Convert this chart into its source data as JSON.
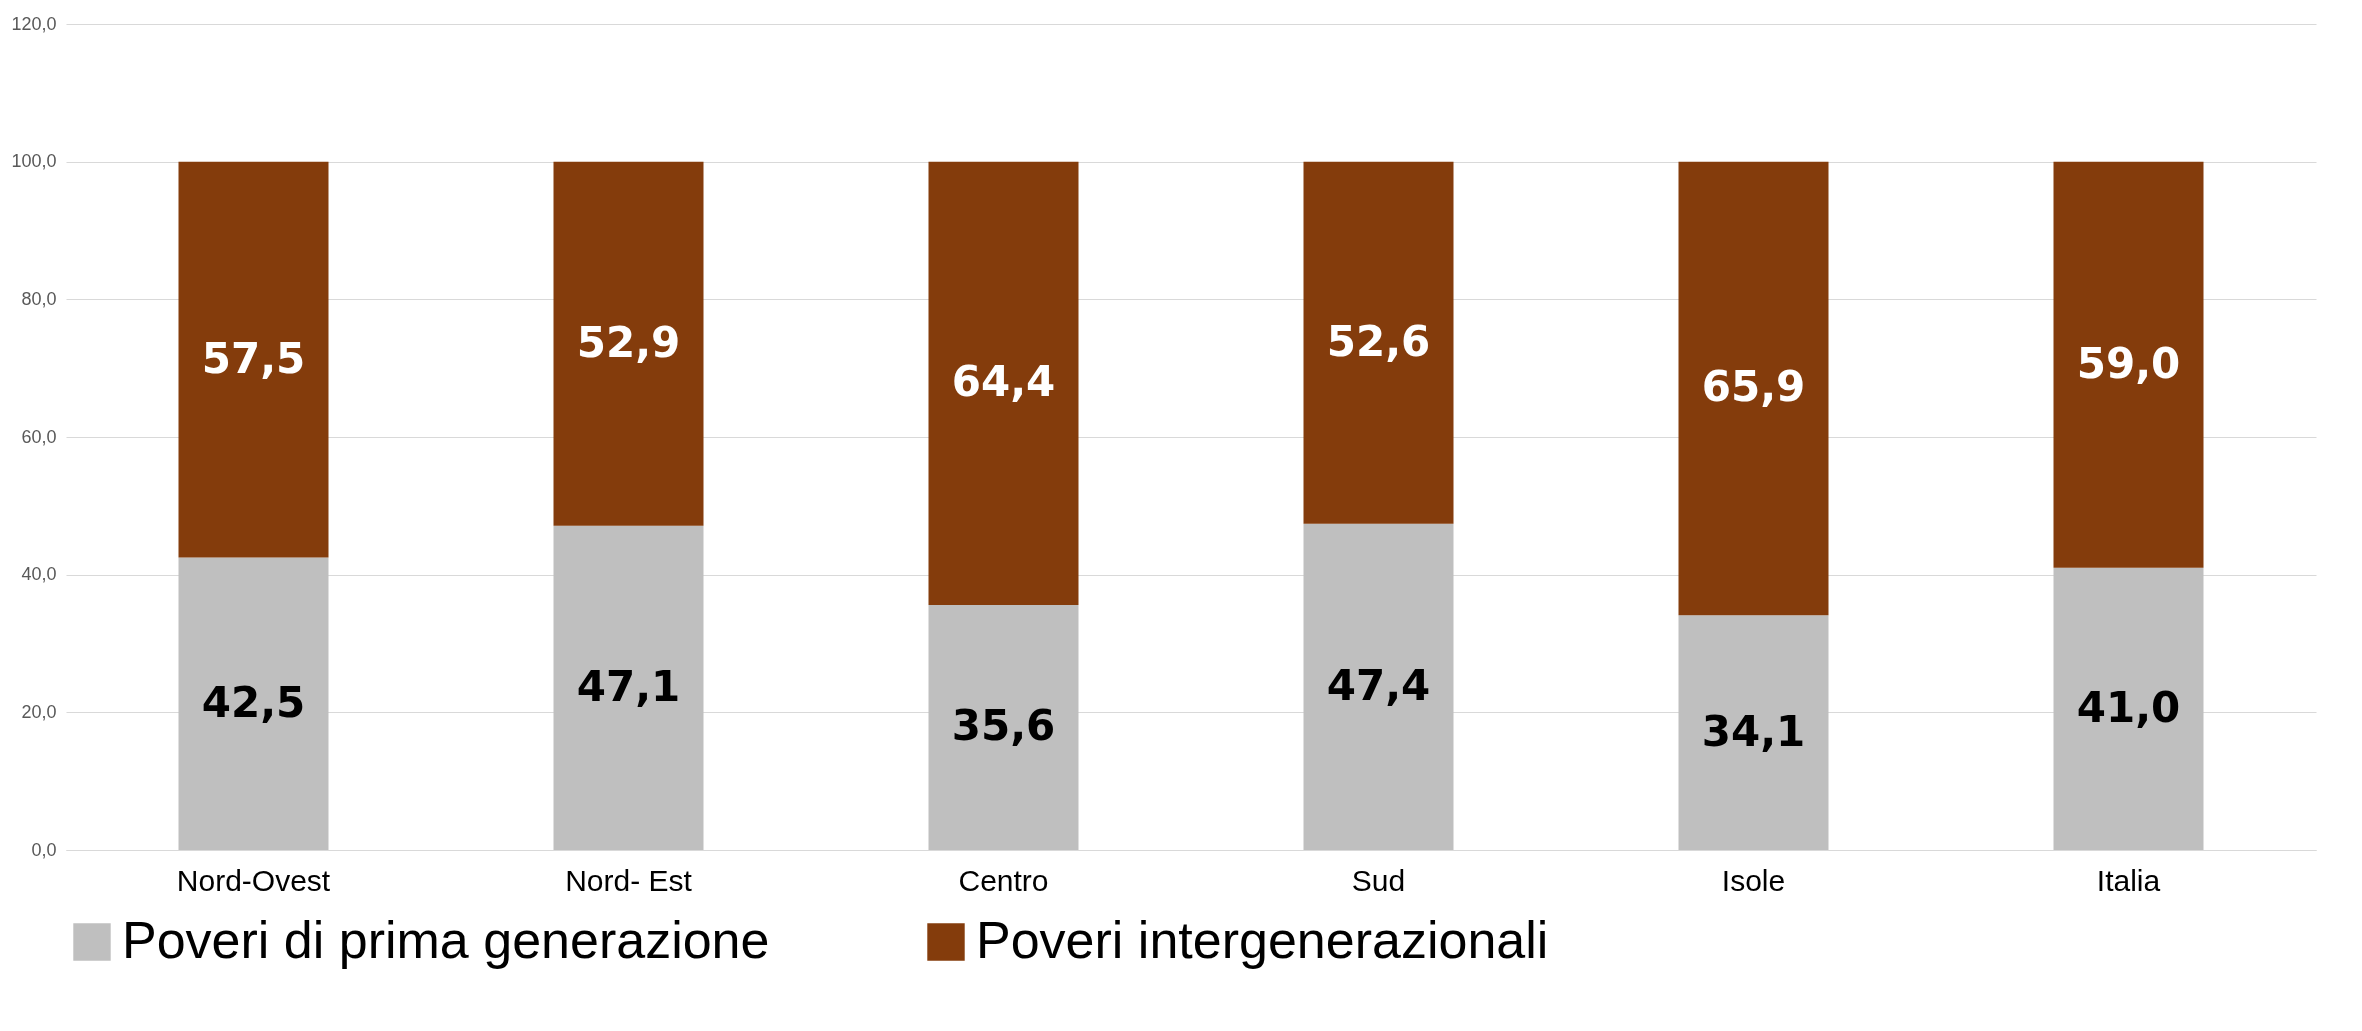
{
  "chart_data": {
    "type": "bar",
    "stacked": true,
    "categories": [
      "Nord-Ovest",
      "Nord- Est",
      "Centro",
      "Sud",
      "Isole",
      "Italia"
    ],
    "series": [
      {
        "name": "Poveri di prima generazione",
        "color": "#bfbfbf",
        "values": [
          42.5,
          47.1,
          35.6,
          47.4,
          34.1,
          41.0
        ],
        "value_labels": [
          "42,5",
          "47,1",
          "35,6",
          "47,4",
          "34,1",
          "41,0"
        ]
      },
      {
        "name": "Poveri intergenerazionali",
        "color": "#843c0c",
        "values": [
          57.5,
          52.9,
          64.4,
          52.6,
          65.9,
          59.0
        ],
        "value_labels": [
          "57,5",
          "52,9",
          "64,4",
          "52,6",
          "65,9",
          "59,0"
        ]
      }
    ],
    "ylim": [
      0,
      120
    ],
    "yticks": [
      {
        "value": 0,
        "label": "0,0"
      },
      {
        "value": 20,
        "label": "20,0"
      },
      {
        "value": 40,
        "label": "40,0"
      },
      {
        "value": 60,
        "label": "60,0"
      },
      {
        "value": 80,
        "label": "80,0"
      },
      {
        "value": 100,
        "label": "100,0"
      },
      {
        "value": 120,
        "label": "120,0"
      }
    ],
    "grid": "y",
    "legend": "bottom"
  }
}
